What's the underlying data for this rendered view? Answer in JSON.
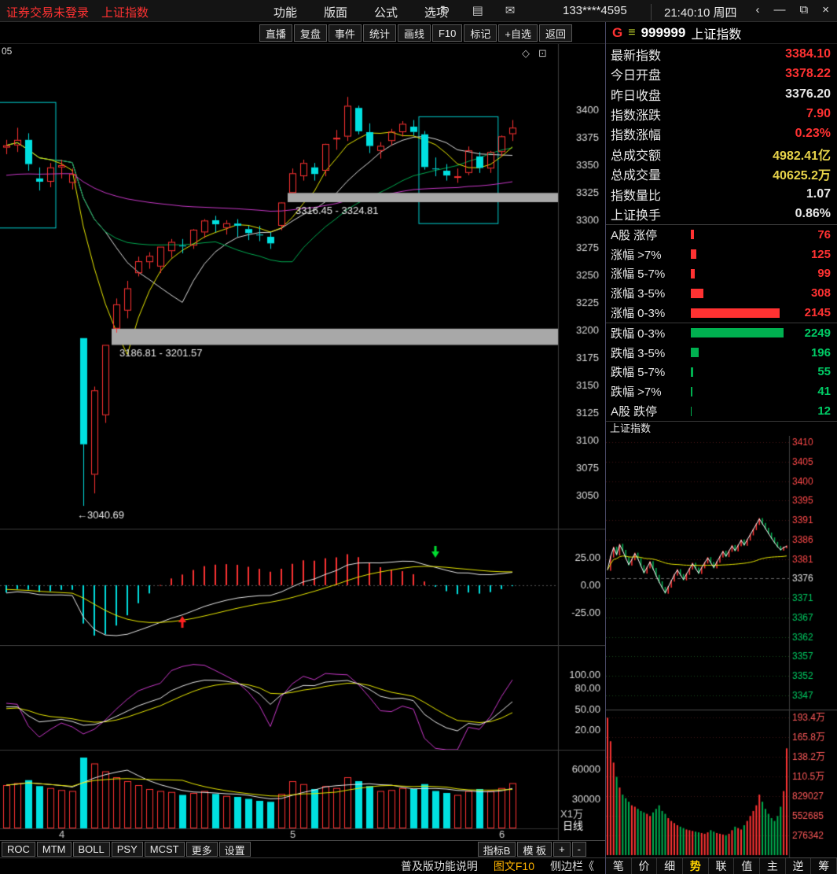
{
  "colors": {
    "red": "#ff3232",
    "up": "#ff3232",
    "down": "#00e0e0",
    "white": "#e8e8e8",
    "yellow": "#e8d44a",
    "green": "#00cc66",
    "green_bar": "#00b050",
    "band_gray": "#a8a8a8",
    "ma_fast": "#e8e800",
    "ma_mid": "#dcdcdc",
    "ma_slow": "#00a850",
    "ma_long": "#c838c8",
    "buy_arrow": "#ff2020",
    "sell_arrow": "#00dd30"
  },
  "top_bar": {
    "login_status": "证券交易未登录",
    "index_name": "上证指数",
    "menus": [
      "功能",
      "版面",
      "公式",
      "选项"
    ],
    "icons": [
      {
        "name": "refresh-icon",
        "glyph": "↻"
      },
      {
        "name": "layout-icon",
        "glyph": "▤"
      },
      {
        "name": "mail-icon",
        "glyph": "✉"
      }
    ],
    "phone": "133****4595",
    "time": "21:40:10 周四",
    "window_controls": [
      {
        "name": "back",
        "glyph": "‹"
      },
      {
        "name": "minimize",
        "glyph": "—"
      },
      {
        "name": "restore",
        "glyph": "⧉"
      },
      {
        "name": "close",
        "glyph": "×"
      }
    ]
  },
  "toolbar": {
    "buttons": [
      "直播",
      "复盘",
      "事件",
      "统计",
      "画线",
      "F10",
      "标记",
      "+自选",
      "返回"
    ]
  },
  "quote_header": {
    "g": "G",
    "icon": "≡",
    "code": "999999",
    "name": "上证指数"
  },
  "corner_icons": {
    "diamond": "◇",
    "panel": "⊡"
  },
  "quote_rows": [
    {
      "label": "最新指数",
      "value": "3384.10",
      "color": "red"
    },
    {
      "label": "今日开盘",
      "value": "3378.22",
      "color": "red"
    },
    {
      "label": "昨日收盘",
      "value": "3376.20",
      "color": "white"
    },
    {
      "label": "指数涨跌",
      "value": "7.90",
      "color": "red"
    },
    {
      "label": "指数涨幅",
      "value": "0.23%",
      "color": "red"
    },
    {
      "label": "总成交额",
      "value": "4982.41亿",
      "color": "yellow"
    },
    {
      "label": "总成交量",
      "value": "40625.2万",
      "color": "yellow"
    },
    {
      "label": "指数量比",
      "value": "1.07",
      "color": "white"
    },
    {
      "label": "上证换手",
      "value": "0.86%",
      "color": "white"
    }
  ],
  "stat_rows": [
    {
      "label": "A股 涨停",
      "value": 76,
      "color": "red",
      "bar_color": "red"
    },
    {
      "label": "涨幅 >7%",
      "value": 125,
      "color": "red",
      "bar_color": "red"
    },
    {
      "label": "涨幅 5-7%",
      "value": 99,
      "color": "red",
      "bar_color": "red"
    },
    {
      "label": "涨幅 3-5%",
      "value": 308,
      "color": "red",
      "bar_color": "red"
    },
    {
      "label": "涨幅 0-3%",
      "value": 2145,
      "color": "red",
      "bar_color": "red"
    },
    {
      "label": "跌幅 0-3%",
      "value": 2249,
      "color": "green",
      "bar_color": "green_bar",
      "divider": true
    },
    {
      "label": "跌幅 3-5%",
      "value": 196,
      "color": "green",
      "bar_color": "green_bar"
    },
    {
      "label": "跌幅 5-7%",
      "value": 55,
      "color": "green",
      "bar_color": "green_bar"
    },
    {
      "label": "跌幅 >7%",
      "value": 41,
      "color": "green",
      "bar_color": "green_bar"
    },
    {
      "label": "A股 跌停",
      "value": 12,
      "color": "green",
      "bar_color": "green_bar"
    }
  ],
  "indicator_bar": {
    "left_tabs": [
      "ROC",
      "MTM",
      "BOLL",
      "PSY",
      "MCST",
      "更多",
      "设置"
    ],
    "right_tabs": [
      "指标B",
      "模 板",
      "+",
      "-"
    ]
  },
  "status_bar": {
    "left": "普及版功能说明",
    "mid": "图文F10",
    "right": "侧边栏《"
  },
  "side_tabs": [
    {
      "label": "笔"
    },
    {
      "label": "价"
    },
    {
      "label": "细"
    },
    {
      "label": "势",
      "active": true
    },
    {
      "label": "联"
    },
    {
      "label": "值"
    },
    {
      "label": "主"
    },
    {
      "label": "逆"
    },
    {
      "label": "筹"
    }
  ],
  "chart_data": [
    {
      "type": "candlestick",
      "title": "上证指数 日线",
      "partial_label": "05",
      "ylim": [
        3020,
        3460
      ],
      "y_ticks": [
        3400,
        3375,
        3350,
        3325,
        3300,
        3275,
        3250,
        3225,
        3200,
        3175,
        3150,
        3125,
        3100,
        3075,
        3050
      ],
      "long_ma_seed": 3340,
      "candles": [
        [
          3366,
          3373,
          3360,
          3368,
          44000
        ],
        [
          3368,
          3384,
          3362,
          3373,
          46000
        ],
        [
          3373,
          3379,
          3345,
          3351,
          49000
        ],
        [
          3338,
          3348,
          3327,
          3335,
          43000
        ],
        [
          3335,
          3352,
          3330,
          3348,
          41000
        ],
        [
          3348,
          3355,
          3338,
          3350,
          39000
        ],
        [
          3334,
          3347,
          3328,
          3342,
          38000
        ],
        [
          3193,
          3193,
          3040.69,
          3096.58,
          72000
        ],
        [
          3069,
          3149,
          3052,
          3145.55,
          66000
        ],
        [
          3123,
          3186.81,
          3116,
          3186.81,
          58000
        ],
        [
          3201.57,
          3229,
          3198,
          3223.64,
          52000
        ],
        [
          3218,
          3245,
          3211,
          3238.23,
          48000
        ],
        [
          3252,
          3267,
          3249,
          3262.81,
          44000
        ],
        [
          3262,
          3271,
          3256,
          3267.66,
          40000
        ],
        [
          3258,
          3276,
          3252,
          3276.0,
          38000
        ],
        [
          3272,
          3283,
          3266,
          3280.34,
          37000
        ],
        [
          3277,
          3283,
          3270,
          3276.73,
          34000
        ],
        [
          3277,
          3292,
          3274,
          3291.43,
          36000
        ],
        [
          3289,
          3301,
          3284,
          3299.76,
          38000
        ],
        [
          3300,
          3304,
          3289,
          3296.36,
          35000
        ],
        [
          3293,
          3300,
          3287,
          3297.29,
          33000
        ],
        [
          3297,
          3301,
          3285,
          3295.06,
          32000
        ],
        [
          3292,
          3295,
          3282,
          3288.41,
          30000
        ],
        [
          3287,
          3295,
          3281,
          3286.65,
          28000
        ],
        [
          3285,
          3289,
          3274,
          3279.03,
          27000
        ],
        [
          3295,
          3316.45,
          3291,
          3316.11,
          35000
        ],
        [
          3324.81,
          3347,
          3324.81,
          3342.67,
          48000
        ],
        [
          3340,
          3355,
          3336,
          3352.0,
          45000
        ],
        [
          3348,
          3352,
          3336,
          3342.0,
          40000
        ],
        [
          3345,
          3369.5,
          3340,
          3369.24,
          43000
        ],
        [
          3374,
          3382,
          3364,
          3374.87,
          41000
        ],
        [
          3376,
          3412,
          3372,
          3403.95,
          52000
        ],
        [
          3402,
          3404,
          3378,
          3380.82,
          48000
        ],
        [
          3380,
          3388,
          3361,
          3367.46,
          43000
        ],
        [
          3363,
          3371,
          3356,
          3367.58,
          38000
        ],
        [
          3372,
          3383,
          3368,
          3380.48,
          39000
        ],
        [
          3380,
          3390,
          3376,
          3387.57,
          41000
        ],
        [
          3385,
          3391,
          3377,
          3380.19,
          40000
        ],
        [
          3378,
          3381,
          3346,
          3348.37,
          45000
        ],
        [
          3347,
          3357,
          3340,
          3346.84,
          38000
        ],
        [
          3345,
          3351,
          3336,
          3340.69,
          36000
        ],
        [
          3339,
          3347,
          3334,
          3339.93,
          34000
        ],
        [
          3343,
          3367,
          3341,
          3363.45,
          38000
        ],
        [
          3358,
          3362,
          3343,
          3347.49,
          40000
        ],
        [
          3347,
          3363,
          3343,
          3361.98,
          38000
        ],
        [
          3362,
          3377,
          3358,
          3376.2,
          41000
        ],
        [
          3378.22,
          3391,
          3372,
          3384.1,
          46000
        ]
      ],
      "month_labels": [
        {
          "text": "4",
          "idx": 5
        },
        {
          "text": "5",
          "idx": 26
        },
        {
          "text": "6",
          "idx": 45
        }
      ],
      "gap_bands": [
        {
          "from": 3316.45,
          "to": 3324.81,
          "start_idx": 26,
          "label": "3316.45 - 3324.81"
        },
        {
          "from": 3186.81,
          "to": 3201.57,
          "start_idx": 10,
          "label": "3186.81 - 3201.57"
        }
      ],
      "low_annotation": {
        "arrow": "←",
        "text": "3040.69",
        "idx": 7,
        "price": 3040.69
      },
      "boxes": [
        {
          "i0": -1.3,
          "i1": 4.5,
          "p0": 3293,
          "p1": 3407
        },
        {
          "i0": 37.5,
          "i1": 44.7,
          "p0": 3297,
          "p1": 3394
        }
      ]
    },
    {
      "type": "macd",
      "y_ticks": [
        25,
        0,
        -25
      ],
      "ylim": [
        -55,
        52
      ],
      "signals": [
        {
          "type": "buy",
          "idx": 16
        },
        {
          "type": "sell",
          "idx": 39
        }
      ]
    },
    {
      "type": "kdj",
      "y_ticks": [
        100,
        80,
        50,
        20
      ],
      "ylim": [
        -8,
        143
      ]
    },
    {
      "type": "volume",
      "y_ticks": [
        60000,
        30000
      ],
      "vmax": 80000,
      "unit": "X1万",
      "period_label": "日线"
    },
    {
      "type": "intraday",
      "name": "上证指数",
      "prev_close": 3376.2,
      "price_labels": [
        {
          "t": "3410",
          "c": "up"
        },
        {
          "t": "3405",
          "c": "up"
        },
        {
          "t": "3400",
          "c": "up"
        },
        {
          "t": "3395",
          "c": "up"
        },
        {
          "t": "3391",
          "c": "up"
        },
        {
          "t": "3386",
          "c": "up"
        },
        {
          "t": "3381",
          "c": "up"
        },
        {
          "t": "3376",
          "c": "flat"
        },
        {
          "t": "3371",
          "c": "down"
        },
        {
          "t": "3367",
          "c": "down"
        },
        {
          "t": "3362",
          "c": "down"
        },
        {
          "t": "3357",
          "c": "down"
        },
        {
          "t": "3352",
          "c": "down"
        },
        {
          "t": "3347",
          "c": "down"
        }
      ],
      "vol_labels": [
        "193.4万",
        "165.8万",
        "138.2万",
        "110.5万",
        "829027",
        "552685",
        "276342"
      ],
      "prices": [
        3378.2,
        3381.5,
        3383.8,
        3382.0,
        3384.5,
        3383.0,
        3381.2,
        3379.5,
        3380.8,
        3382.3,
        3381.0,
        3379.2,
        3377.5,
        3378.8,
        3380.2,
        3378.5,
        3376.8,
        3375.2,
        3373.8,
        3372.5,
        3374.0,
        3375.5,
        3377.0,
        3378.2,
        3377.0,
        3375.8,
        3377.2,
        3378.5,
        3379.8,
        3378.6,
        3377.4,
        3378.8,
        3380.0,
        3381.2,
        3380.0,
        3378.8,
        3380.2,
        3381.5,
        3382.8,
        3381.6,
        3382.9,
        3384.2,
        3383.0,
        3384.3,
        3385.6,
        3384.4,
        3385.7,
        3387.0,
        3388.3,
        3389.6,
        3390.9,
        3389.7,
        3388.5,
        3387.3,
        3386.1,
        3385.0,
        3384.0,
        3383.2,
        3383.8,
        3384.1
      ],
      "volumes": [
        193,
        160,
        130,
        110,
        95,
        85,
        80,
        75,
        70,
        68,
        65,
        62,
        60,
        58,
        55,
        60,
        65,
        70,
        62,
        58,
        52,
        48,
        45,
        42,
        40,
        38,
        36,
        35,
        34,
        33,
        32,
        31,
        30,
        32,
        35,
        33,
        31,
        30,
        29,
        28,
        30,
        35,
        40,
        38,
        36,
        42,
        48,
        55,
        62,
        70,
        85,
        75,
        65,
        58,
        52,
        48,
        55,
        68,
        90,
        150
      ]
    }
  ]
}
